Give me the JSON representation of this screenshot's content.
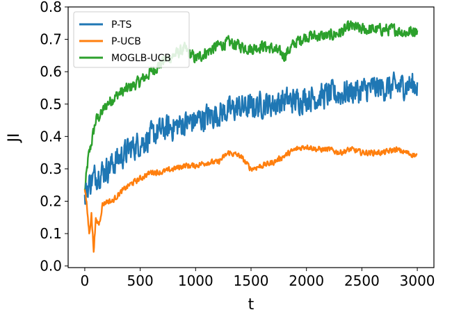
{
  "chart_data": {
    "type": "line",
    "xlabel": "t",
    "ylabel": "JI",
    "xlim": [
      -150,
      3150
    ],
    "ylim": [
      -0.005,
      0.8
    ],
    "xticks": [
      0,
      500,
      1000,
      1500,
      2000,
      2500,
      3000
    ],
    "yticks": [
      0.0,
      0.1,
      0.2,
      0.3,
      0.4,
      0.5,
      0.6,
      0.7,
      0.8
    ],
    "xtick_labels": [
      "0",
      "500",
      "1000",
      "1500",
      "2000",
      "2500",
      "3000"
    ],
    "ytick_labels": [
      "0.0",
      "0.1",
      "0.2",
      "0.3",
      "0.4",
      "0.5",
      "0.6",
      "0.7",
      "0.8"
    ],
    "grid": false,
    "legend_position": "top-left",
    "series": [
      {
        "name": "P-TS",
        "color": "#1f77b4",
        "noise": 0.055,
        "x": [
          0,
          20,
          50,
          100,
          200,
          300,
          400,
          500,
          600,
          700,
          800,
          900,
          1000,
          1100,
          1200,
          1300,
          1400,
          1500,
          1600,
          1700,
          1800,
          1900,
          2000,
          2100,
          2200,
          2300,
          2400,
          2500,
          2600,
          2700,
          2800,
          2900,
          3000
        ],
        "y": [
          0.2,
          0.24,
          0.26,
          0.28,
          0.3,
          0.33,
          0.36,
          0.38,
          0.4,
          0.42,
          0.43,
          0.44,
          0.45,
          0.46,
          0.47,
          0.48,
          0.49,
          0.49,
          0.5,
          0.5,
          0.51,
          0.51,
          0.52,
          0.52,
          0.53,
          0.53,
          0.54,
          0.54,
          0.55,
          0.55,
          0.55,
          0.56,
          0.56
        ]
      },
      {
        "name": "P-UCB",
        "color": "#ff7f0e",
        "noise": 0.012,
        "x": [
          0,
          20,
          40,
          60,
          80,
          100,
          130,
          160,
          200,
          250,
          300,
          400,
          500,
          600,
          700,
          800,
          900,
          1000,
          1100,
          1200,
          1300,
          1400,
          1500,
          1600,
          1700,
          1800,
          1900,
          2000,
          2100,
          2200,
          2300,
          2400,
          2500,
          2600,
          2700,
          2800,
          2900,
          3000
        ],
        "y": [
          0.24,
          0.18,
          0.1,
          0.16,
          0.05,
          0.14,
          0.13,
          0.19,
          0.2,
          0.2,
          0.22,
          0.25,
          0.27,
          0.29,
          0.29,
          0.3,
          0.31,
          0.31,
          0.32,
          0.32,
          0.35,
          0.34,
          0.3,
          0.31,
          0.32,
          0.34,
          0.36,
          0.37,
          0.36,
          0.36,
          0.35,
          0.36,
          0.35,
          0.35,
          0.35,
          0.36,
          0.35,
          0.34
        ]
      },
      {
        "name": "MOGLB-UCB",
        "color": "#2ca02c",
        "noise": 0.025,
        "x": [
          0,
          30,
          60,
          100,
          150,
          200,
          300,
          400,
          500,
          600,
          700,
          800,
          900,
          1000,
          1100,
          1200,
          1300,
          1400,
          1500,
          1600,
          1700,
          1800,
          1900,
          2000,
          2100,
          2200,
          2300,
          2400,
          2500,
          2600,
          2700,
          2800,
          2900,
          3000
        ],
        "y": [
          0.23,
          0.33,
          0.38,
          0.45,
          0.47,
          0.5,
          0.53,
          0.55,
          0.57,
          0.6,
          0.63,
          0.65,
          0.67,
          0.64,
          0.66,
          0.68,
          0.69,
          0.68,
          0.67,
          0.68,
          0.67,
          0.65,
          0.69,
          0.71,
          0.71,
          0.71,
          0.72,
          0.74,
          0.73,
          0.73,
          0.73,
          0.73,
          0.72,
          0.73
        ]
      }
    ]
  }
}
